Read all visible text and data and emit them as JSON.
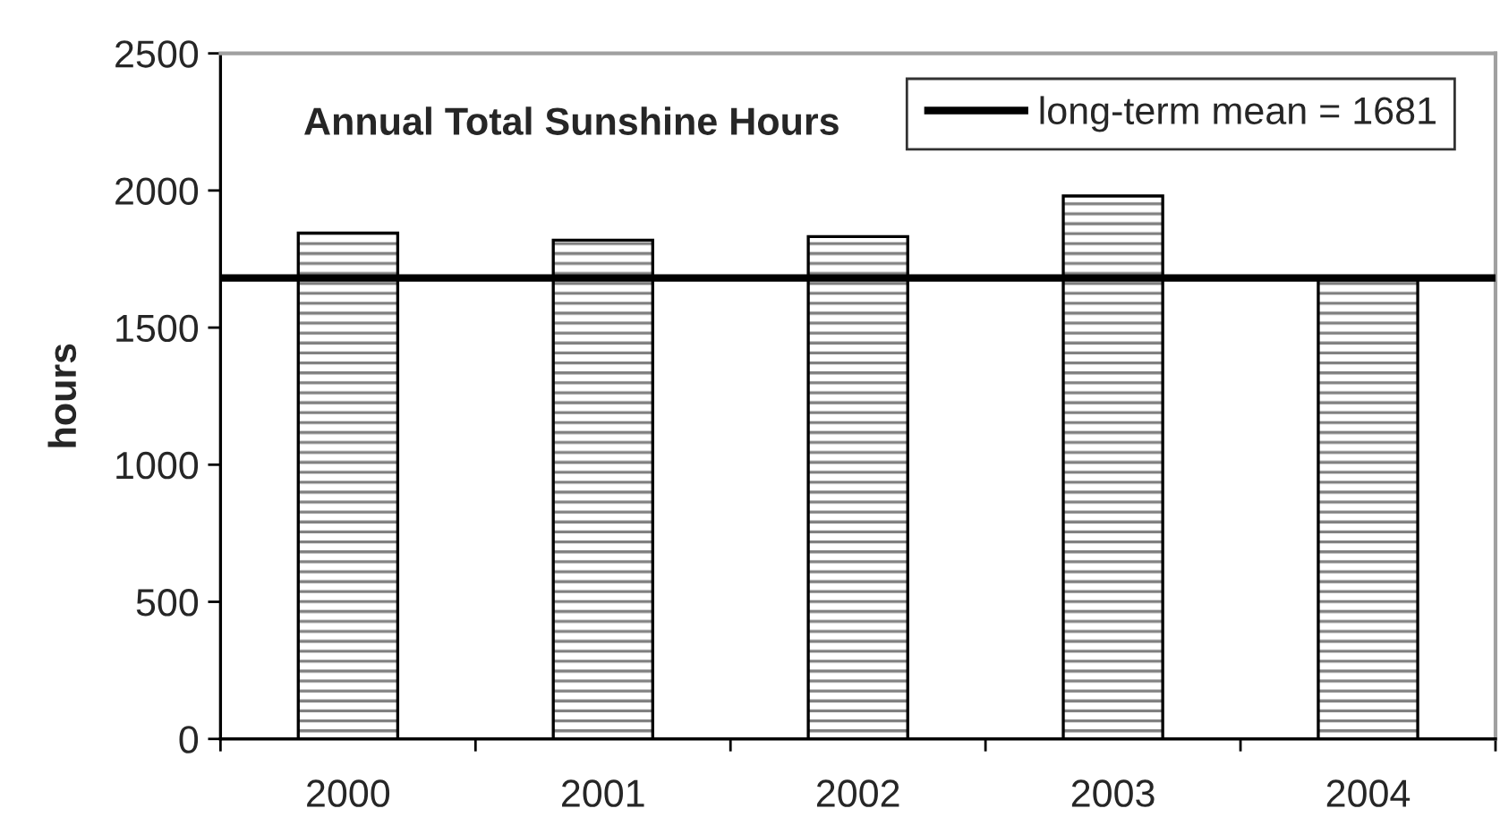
{
  "chart_data": {
    "type": "bar",
    "title": "Annual Total Sunshine Hours",
    "ylabel": "hours",
    "categories": [
      "2000",
      "2001",
      "2002",
      "2003",
      "2004"
    ],
    "series": [
      {
        "color": "#000000",
        "values": [
          1845,
          1819,
          1832,
          1980,
          1675
        ]
      }
    ],
    "ylim": [
      0,
      2500
    ],
    "yticks": [
      0,
      500,
      1000,
      1500,
      2000,
      2500
    ],
    "ref_lines": [
      {
        "axis": "y",
        "value": 1681,
        "label": "long-term mean = 1681",
        "color": "#000000",
        "line_style": "solid"
      }
    ],
    "legend": "top right",
    "grid": false
  }
}
